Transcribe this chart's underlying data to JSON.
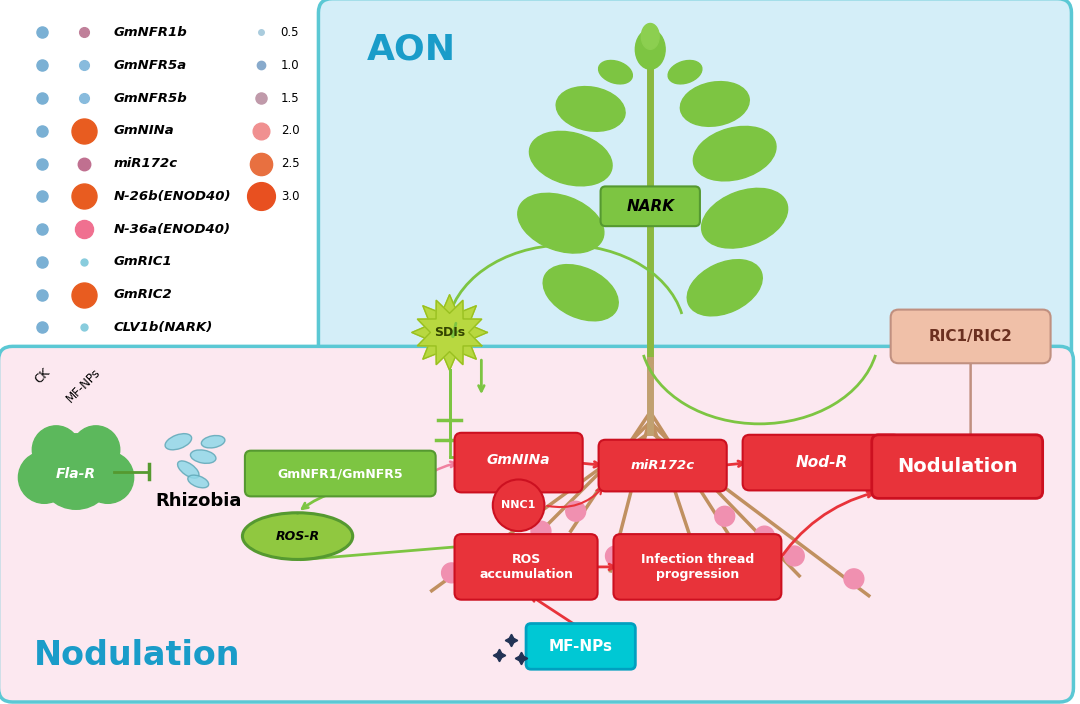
{
  "bg_color": "#ffffff",
  "aon_bg": "#d4eef8",
  "nod_bg": "#fce8f0",
  "aon_border": "#5bc8d4",
  "nod_border": "#5bc8d4",
  "aon_label": "AON",
  "nod_label": "Nodulation",
  "aon_label_color": "#1a9cc9",
  "nod_label_color": "#1a9cc9",
  "nark_box_color": "#7dc542",
  "nark_text": "NARK",
  "sdi_color": "#b8d840",
  "sdi_text": "SDIs",
  "ric_box_color": "#f0c0a8",
  "ric_border": "#c09080",
  "ric_text": "RIC1/RIC2",
  "flar_color": "#5cb85c",
  "flar_text": "Fla-R",
  "rhizobia_text": "Rhizobia",
  "gmnfr_box_color": "#7dc542",
  "gmnfr_text": "GmNFR1/GmNFR5",
  "rosr_color": "#90c840",
  "rosr_border": "#559930",
  "rosr_text": "ROS-R",
  "gmnina_box_color": "#e8333a",
  "gmnina_text": "GmNINa",
  "nnc1_circle_color": "#e8333a",
  "nnc1_border": "#cc1020",
  "nnc1_text": "NNC1",
  "mir_box_color": "#e8333a",
  "mir_text": "miR172c",
  "nodr_box_color": "#e8333a",
  "nodr_text": "Nod-R",
  "ros_box_color": "#e8333a",
  "ros_text": "ROS\naccumulation",
  "inf_box_color": "#e8333a",
  "inf_text": "Infection thread\nprogression",
  "nod_box_color": "#e8333a",
  "nod_text": "Nodulation",
  "mfnps_box_color": "#00c8d4",
  "mfnps_border": "#00a0c0",
  "mfnps_text": "MF-NPs",
  "legend_genes": [
    "GmNFR1b",
    "GmNFR5a",
    "GmNFR5b",
    "GmNINa",
    "miR172c",
    "N-26b(ENOD40)",
    "N-36a(ENOD40)",
    "GmRIC1",
    "GmRIC2",
    "CLV1b(NARK)"
  ],
  "legend_ck_colors": [
    "#7ab0d4",
    "#7ab0d4",
    "#7ab0d4",
    "#7ab0d4",
    "#7ab0d4",
    "#7ab0d4",
    "#7ab0d4",
    "#7ab0d4",
    "#7ab0d4",
    "#7ab0d4"
  ],
  "legend_ck_sizes": [
    7,
    7,
    7,
    7,
    7,
    7,
    7,
    7,
    7,
    7
  ],
  "legend_mfnps_colors": [
    "#c0809a",
    "#88bbdd",
    "#88bbdd",
    "#e85c20",
    "#c07090",
    "#e85c20",
    "#f07090",
    "#88ccdd",
    "#e85c20",
    "#88ccdd"
  ],
  "legend_mfnps_sizes": [
    7,
    7,
    7,
    18,
    9,
    18,
    13,
    5,
    18,
    5
  ],
  "size_legend_vals": [
    0.5,
    1.0,
    1.5,
    2.0,
    2.5,
    3.0
  ],
  "size_legend_sizes": [
    4,
    6,
    8,
    12,
    16,
    20
  ],
  "size_legend_colors": [
    "#aaccdd",
    "#88aacc",
    "#c09aaa",
    "#f09090",
    "#e87040",
    "#e85020"
  ]
}
